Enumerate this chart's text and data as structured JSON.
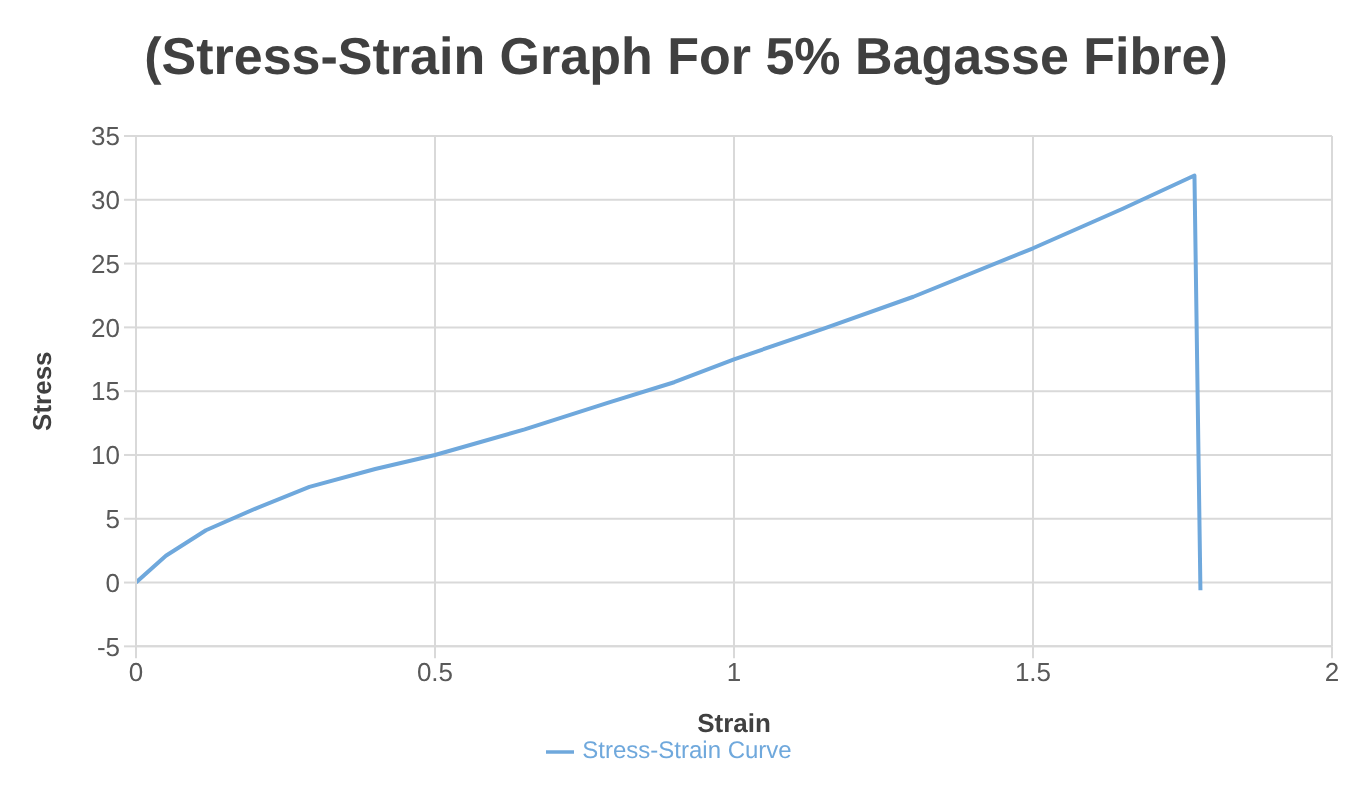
{
  "chart_data": {
    "type": "line",
    "title": "(Stress-Strain Graph For 5% Bagasse Fibre)",
    "xlabel": "Strain",
    "ylabel": "Stress",
    "x": [
      0,
      0.05,
      0.117,
      0.2,
      0.29,
      0.4,
      0.5,
      0.65,
      0.79,
      0.9,
      1.0,
      1.15,
      1.3,
      1.5,
      1.65,
      1.77,
      1.78
    ],
    "series": [
      {
        "name": "Stress-Strain Curve",
        "color": "#6fa8dc",
        "values": [
          0,
          2.1,
          4.1,
          5.8,
          7.5,
          8.9,
          10,
          12,
          14.1,
          15.7,
          17.5,
          19.9,
          22.4,
          26.2,
          29.3,
          31.9,
          -0.6
        ]
      }
    ],
    "xlim": [
      0,
      2
    ],
    "xticks": [
      0,
      0.5,
      1,
      1.5,
      2
    ],
    "ylim": [
      -5,
      35
    ],
    "yticks": [
      -5,
      0,
      5,
      10,
      15,
      20,
      25,
      30,
      35
    ],
    "grid": true,
    "legend": "bottom",
    "marker": "none",
    "line_style": "solid"
  }
}
